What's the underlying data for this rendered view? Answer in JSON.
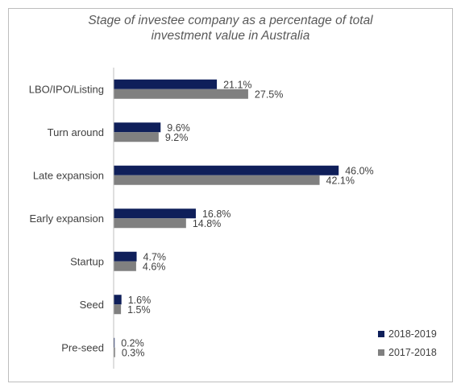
{
  "chart_data": {
    "type": "bar",
    "orientation": "horizontal",
    "title_lines": [
      "Stage of investee company as a percentage of total",
      "investment value in Australia"
    ],
    "categories": [
      "LBO/IPO/Listing",
      "Turn around",
      "Late expansion",
      "Early expansion",
      "Startup",
      "Seed",
      "Pre-seed"
    ],
    "series": [
      {
        "name": "2018-2019",
        "color": "#0f1f5a",
        "values": [
          21.1,
          9.6,
          46.0,
          16.8,
          4.7,
          1.6,
          0.2
        ],
        "labels": [
          "21.1%",
          "9.6%",
          "46.0%",
          "16.8%",
          "4.7%",
          "1.6%",
          "0.2%"
        ]
      },
      {
        "name": "2017-2018",
        "color": "#808080",
        "values": [
          27.5,
          9.2,
          42.1,
          14.8,
          4.6,
          1.5,
          0.3
        ],
        "labels": [
          "27.5%",
          "9.2%",
          "42.1%",
          "14.8%",
          "4.6%",
          "1.5%",
          "0.3%"
        ]
      }
    ],
    "xlim": [
      0,
      50
    ],
    "grid": false,
    "legend_position": "bottom-right"
  }
}
